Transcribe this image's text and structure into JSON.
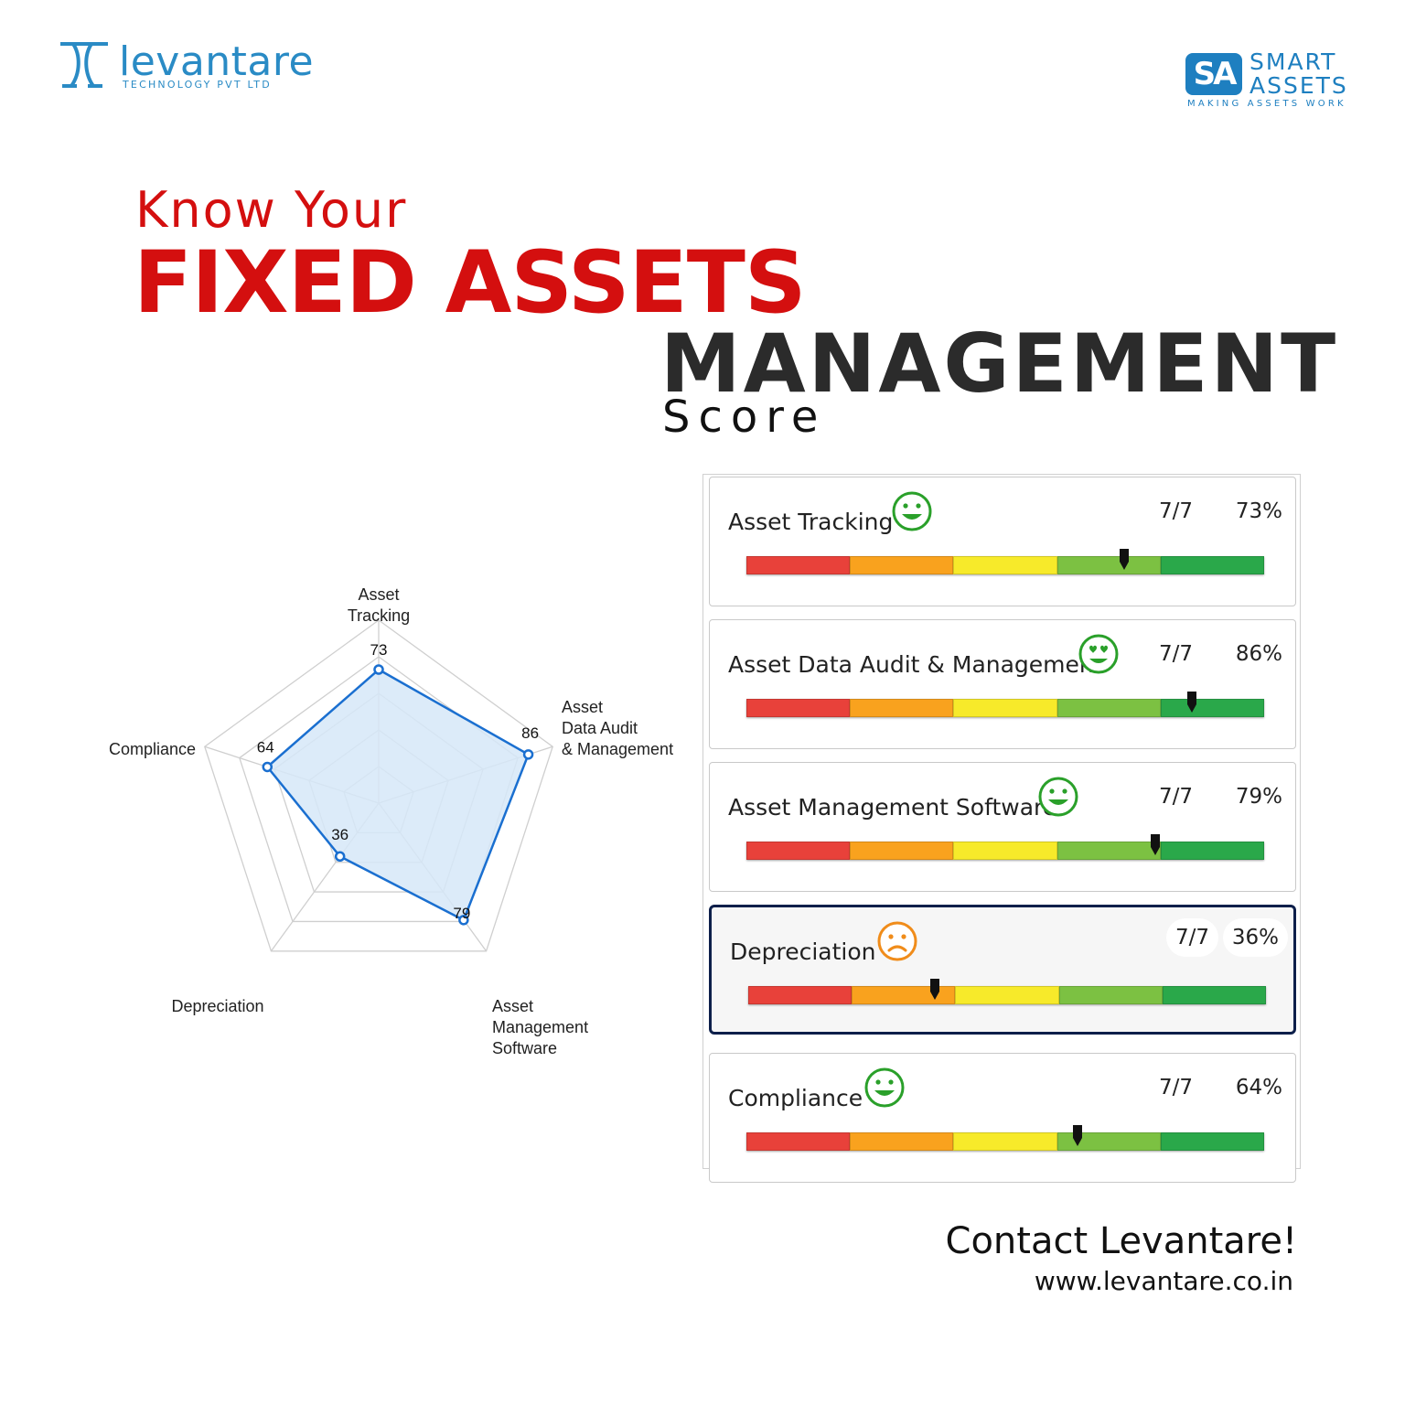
{
  "brand": {
    "levantare_name": "levantare",
    "levantare_sub": "TECHNOLOGY PVT LTD",
    "smart_mark": "SA",
    "smart_line1": "SMART",
    "smart_line2": "ASSETS",
    "smart_tagline": "MAKING ASSETS WORK",
    "accent_color": "#1e7fc0"
  },
  "headline": {
    "line1": "Know Your",
    "line2": "FIXED ASSETS",
    "line3": "MANAGEMENT",
    "line4": "Score",
    "red_color": "#d40f0f"
  },
  "chart_data": {
    "type": "radar",
    "axes": [
      "Asset Tracking",
      "Asset Data Audit & Management",
      "Asset Management Software",
      "Depreciation",
      "Compliance"
    ],
    "axis_label_lines": [
      [
        "Asset",
        "Tracking"
      ],
      [
        "Asset",
        "Data Audit",
        "& Management"
      ],
      [
        "Asset",
        "Management",
        "Software"
      ],
      [
        "Depreciation"
      ],
      [
        "Compliance"
      ]
    ],
    "values": [
      73,
      86,
      79,
      36,
      64
    ],
    "value_labels": [
      "73",
      "86",
      "79",
      "36",
      "64"
    ],
    "range": [
      0,
      100
    ],
    "rings": 5,
    "line_color": "#1a6fd0",
    "fill_color": "#d6e8f8"
  },
  "scores": [
    {
      "label": "Asset Tracking",
      "face": "smile",
      "score": "7/7",
      "percent": "73%",
      "value": 73,
      "highlight": false
    },
    {
      "label": "Asset Data Audit & Management",
      "face": "heart-eyes",
      "score": "7/7",
      "percent": "86%",
      "value": 86,
      "highlight": false
    },
    {
      "label": "Asset Management Software",
      "face": "smile",
      "score": "7/7",
      "percent": "79%",
      "value": 79,
      "highlight": false
    },
    {
      "label": "Depreciation",
      "face": "frown",
      "score": "7/7",
      "percent": "36%",
      "value": 36,
      "highlight": true
    },
    {
      "label": "Compliance",
      "face": "smile",
      "score": "7/7",
      "percent": "64%",
      "value": 64,
      "highlight": false
    }
  ],
  "scale_colors": [
    "#e8413a",
    "#f9a21e",
    "#f7ea2a",
    "#7cc142",
    "#2aa84a"
  ],
  "footer": {
    "contact": "Contact Levantare!",
    "website": "www.levantare.co.in"
  }
}
